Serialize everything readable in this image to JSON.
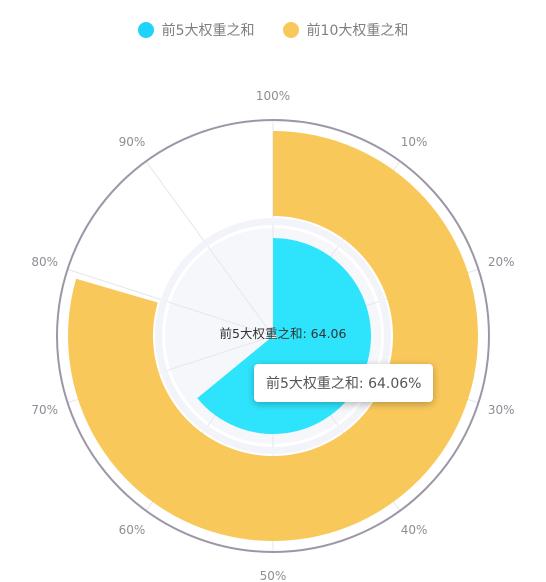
{
  "chart_data": {
    "type": "polar-bar",
    "angle_axis": {
      "min": 0,
      "max": 100,
      "ticks": [
        "10%",
        "20%",
        "30%",
        "40%",
        "50%",
        "60%",
        "70%",
        "80%",
        "90%",
        "100%"
      ]
    },
    "series": [
      {
        "name": "前5大权重之和",
        "value": 64.06,
        "color": "#2ee4fc"
      },
      {
        "name": "前10大权重之和",
        "value": 79.5,
        "color": "#f9c85a"
      }
    ],
    "center_label": "前5大权重之和: 64.06",
    "tooltip": "前5大权重之和: 64.06%",
    "grid": true
  }
}
